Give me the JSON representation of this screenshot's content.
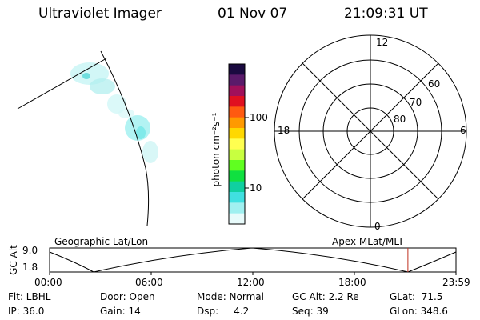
{
  "header": {
    "instrument": "Ultraviolet Imager",
    "date": "01 Nov 07",
    "time": "21:09:31 UT"
  },
  "colorbar": {
    "unit_label": "photon cm⁻²s⁻¹",
    "ticks": [
      {
        "label": "100",
        "value": 100
      },
      {
        "label": "10",
        "value": 10
      }
    ],
    "colors": [
      "#1a0a40",
      "#5a1a6a",
      "#a0105a",
      "#e01020",
      "#ff5a10",
      "#ff9a00",
      "#ffd800",
      "#ffff50",
      "#c8ff40",
      "#60ff20",
      "#10e040",
      "#10d0a0",
      "#40e0e0",
      "#a0f0f0",
      "#e8fbfb"
    ]
  },
  "polar_grid": {
    "mlt_labels": {
      "top": "12",
      "left": "18",
      "right": "6",
      "bottom": "0"
    },
    "lat_labels": [
      "60",
      "70",
      "80"
    ]
  },
  "timeline": {
    "geo_label": "Geographic Lat/Lon",
    "apex_label": "Apex MLat/MLT",
    "axis_title": "GC Alt",
    "alt_max": "9.0",
    "alt_min": "1.8",
    "time_ticks": [
      "00:00",
      "06:00",
      "12:00",
      "18:00",
      "23:59"
    ],
    "marker_time_hours": 21.16
  },
  "info": {
    "flt": "Flt: LBHL",
    "ip": "IP: 36.0",
    "door": "Door: Open",
    "gain": "Gain: 14",
    "mode": "Mode: Normal",
    "dsp": "Dsp:     4.2",
    "gcalt": "GC Alt: 2.2 Re",
    "seq": "Seq: 39",
    "glat": "GLat:  71.5",
    "glon": "GLon: 348.6"
  }
}
